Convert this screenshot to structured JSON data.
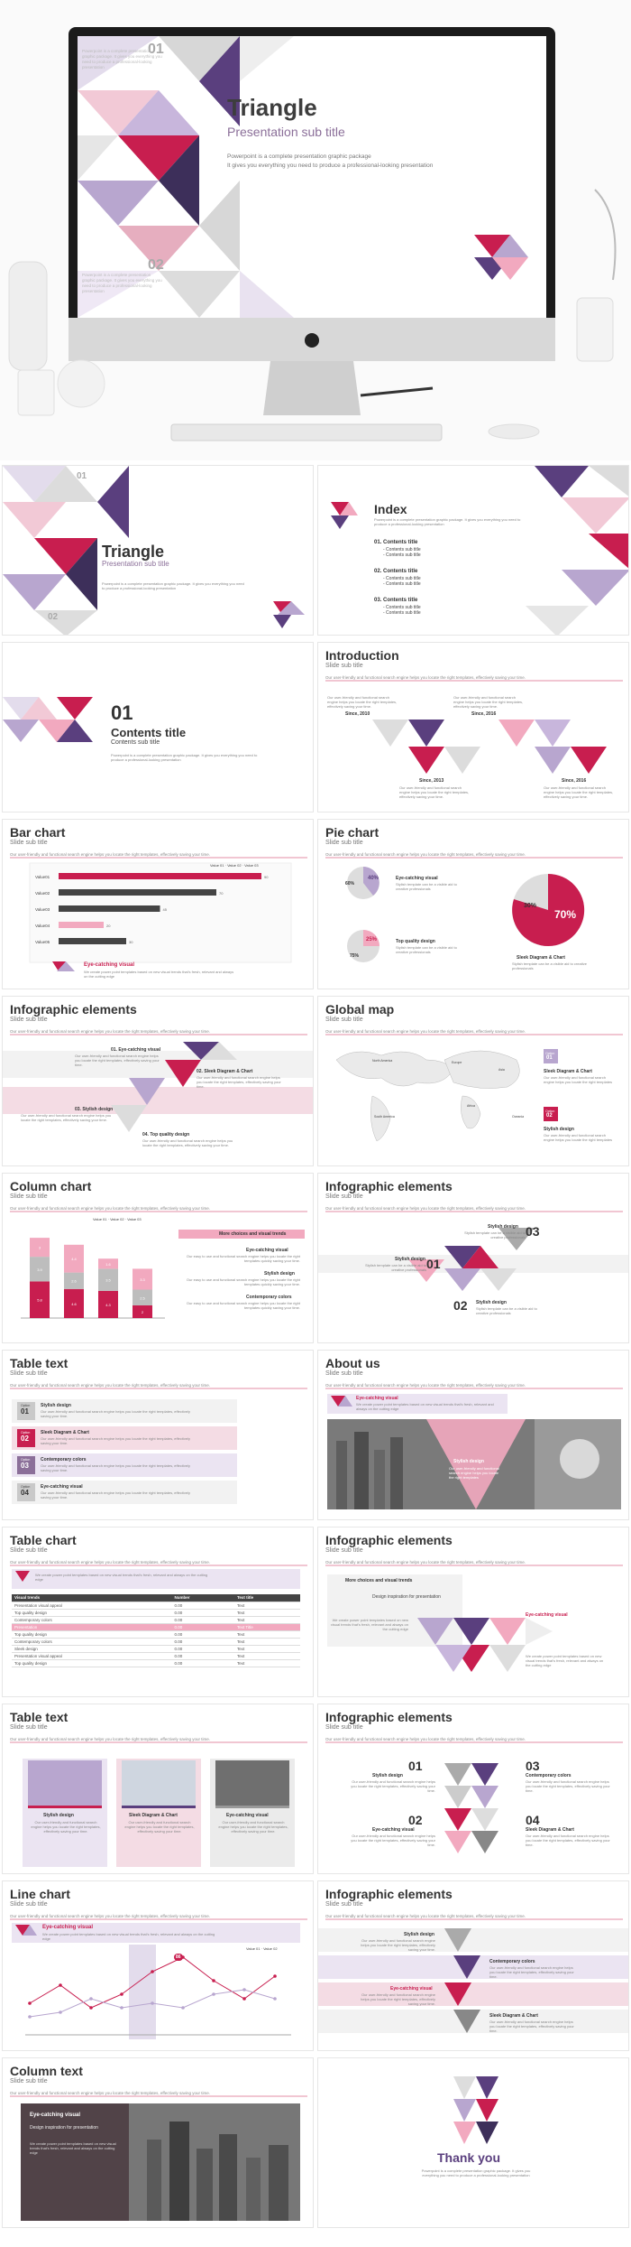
{
  "hero": {
    "title": "Triangle",
    "subtitle": "Presentation sub title",
    "desc1": "Powerpoint is a complete presentation graphic package",
    "desc2": "It gives you everything you need to produce a professional-looking presentation",
    "n1": "01",
    "n2": "02",
    "mini1": "Powerpoint is a complete presentation graphic package. It gives you everything you need to produce a professional-looking presentation",
    "mini2": "Powerpoint is a complete presentation graphic package. It gives you everything you need to produce a professional-looking presentation"
  },
  "slides": {
    "s1": {
      "title": "Triangle",
      "sub": "Presentation sub title",
      "n1": "01",
      "n2": "02",
      "desc": "Powerpoint is a complete presentation graphic package. It gives you everything you need to produce a professional-looking presentation"
    },
    "s2": {
      "title": "Index",
      "desc": "Powerpoint is a complete presentation graphic package. It gives you everything you need to produce a professional-looking presentation",
      "items": [
        {
          "h": "01. Contents title",
          "a": "- Contents sub title",
          "b": "- Contents sub title"
        },
        {
          "h": "02. Contents title",
          "a": "- Contents sub title",
          "b": "- Contents sub title"
        },
        {
          "h": "03. Contents title",
          "a": "- Contents sub title",
          "b": "- Contents sub title"
        }
      ]
    },
    "s3": {
      "num": "01",
      "title": "Contents title",
      "sub": "Contents sub title",
      "desc": "Powerpoint is a complete presentation graphic package. It gives you everything you need to produce a professional-looking presentation"
    },
    "s4": {
      "title": "Introduction",
      "sub": "Slide sub title",
      "desc": "Our user-friendly and functional search engine helps you locate the right templates, effectively saving your time.",
      "y1": "Since, 2010",
      "y2": "Since, 2016",
      "y3": "Since, 2013",
      "y4": "Since, 2016",
      "t": "Our user-friendly and functional search engine helps you locate the right templates, effectively saving your time."
    },
    "s5": {
      "title": "Bar chart",
      "sub": "Slide sub title",
      "desc": "Our user-friendly and functional search engine helps you locate the right templates, effectively saving your time.",
      "legend": [
        "Value 01",
        "Value 02",
        "Value 03"
      ],
      "callout": "Eye-catching visual",
      "calloutDesc": "We create power point templates based on new visual trends that's fresh, relevant and always on the cutting edge"
    },
    "s6": {
      "title": "Pie chart",
      "sub": "Slide sub title",
      "desc": "Our user-friendly and functional search engine helps you locate the right templates, effectively saving your time.",
      "p1": "60%",
      "p2": "40%",
      "p3": "75%",
      "p4": "25%",
      "p5": "30%",
      "p6": "70%",
      "h1": "Eye-catching visual",
      "d1": "Stylish template can be a visible aid to creative professionals",
      "h2": "Top quality design",
      "d2": "Stylish template can be a visible aid to creative professionals",
      "h3": "Sleek Diagram & Chart",
      "d3": "Stylish template can be a visible aid to creative professionals",
      "legend": [
        "Value 01",
        "Value 02"
      ]
    },
    "s7": {
      "title": "Infographic elements",
      "sub": "Slide sub title",
      "desc": "Our user-friendly and functional search engine helps you locate the right templates, effectively saving your time.",
      "i1": "01. Eye-catching visual",
      "i2": "02. Sleek Diagram & Chart",
      "i3": "03. Stylish design",
      "i4": "04. Top quality design",
      "t": "Our user-friendly and functional search engine helps you locate the right templates, effectively saving your time."
    },
    "s8": {
      "title": "Global map",
      "sub": "Slide sub title",
      "desc": "Our user-friendly and functional search engine helps you locate the right templates, effectively saving your time.",
      "o1": "Option",
      "n1": "01",
      "o2": "Option",
      "n2": "02",
      "h1": "Sleek Diagram & Chart",
      "h2": "Stylish design",
      "d1": "Our user-friendly and functional search engine helps you locate the right templates",
      "d2": "Our user-friendly and functional search engine helps you locate the right templates",
      "r1": "Europe",
      "r2": "North America",
      "r3": "Africa",
      "r4": "South America",
      "r5": "Oceania",
      "r6": "Asia"
    },
    "s9": {
      "title": "Column chart",
      "sub": "Slide sub title",
      "desc": "Our user-friendly and functional search engine helps you locate the right templates, effectively saving your time.",
      "banner": "More choices and visual trends",
      "h1": "Eye-catching visual",
      "h2": "Stylish design",
      "h3": "Contemporary colors",
      "d": "Our easy to use and functional search engine helps you locate the right templates quickly saving your time.",
      "legend": [
        "Value 01",
        "Value 02",
        "Value 03"
      ]
    },
    "s10": {
      "title": "Infographic elements",
      "sub": "Slide sub title",
      "desc": "Our user-friendly and functional search engine helps you locate the right templates, effectively saving your time.",
      "n1": "01",
      "n2": "02",
      "n3": "03",
      "h1": "Stylish design",
      "h2": "Stylish design",
      "h3": "Stylish design",
      "d": "Stylish template can be a visible aid to creative professionals"
    },
    "s11": {
      "title": "Table text",
      "sub": "Slide sub title",
      "desc": "Our user-friendly and functional search engine helps you locate the right templates, effectively saving your time.",
      "rows": [
        {
          "o": "Option",
          "n": "01",
          "h": "Stylish design"
        },
        {
          "o": "Option",
          "n": "02",
          "h": "Sleek Diagram & Chart"
        },
        {
          "o": "Option",
          "n": "03",
          "h": "Contemporary colors"
        },
        {
          "o": "Option",
          "n": "04",
          "h": "Eye-catching visual"
        }
      ],
      "d": "Our user-friendly and functional search engine helps you locate the right templates, effectively saving your time."
    },
    "s12": {
      "title": "About us",
      "sub": "Slide sub title",
      "desc": "Our user-friendly and functional search engine helps you locate the right templates, effectively saving your time.",
      "h1": "Eye-catching visual",
      "d1": "We create power point templates based on new visual trends that's fresh, relevant and always on the cutting edge",
      "h2": "Stylish design",
      "d2": "Our user-friendly and functional search engine helps you locate the right templates"
    },
    "s13": {
      "title": "Table chart",
      "sub": "Slide sub title",
      "desc": "Our user-friendly and functional search engine helps you locate the right templates, effectively saving your time.",
      "callout": "We create power point templates based on new visual trends that's fresh, relevant and always on the cutting edge",
      "head": [
        "Visual trends",
        "Number",
        "Text title"
      ],
      "rows": [
        [
          "Presentation visual appeal",
          "0.00",
          "Text"
        ],
        [
          "Top quality design",
          "0.00",
          "Text"
        ],
        [
          "Contemporary colors",
          "0.00",
          "Text"
        ],
        [
          "Presentation",
          "0.00",
          "Text Title"
        ],
        [
          "Top quality design",
          "0.00",
          "Text"
        ],
        [
          "Contemporary colors",
          "0.00",
          "Text"
        ],
        [
          "Sleek design",
          "0.00",
          "Text"
        ],
        [
          "Presentation visual appeal",
          "0.00",
          "Text"
        ],
        [
          "Top quality design",
          "0.00",
          "Text"
        ]
      ]
    },
    "s14": {
      "title": "Infographic elements",
      "sub": "Slide sub title",
      "desc": "Our user-friendly and functional search engine helps you locate the right templates, effectively saving your time.",
      "h1": "More choices and visual trends",
      "h2": "Design inspiration for presentation",
      "h3": "Eye-catching visual",
      "d": "We create power point templates based on new visual trends that's fresh, relevant and always on the cutting edge"
    },
    "s15": {
      "title": "Table text",
      "sub": "Slide sub title",
      "desc": "Our user-friendly and functional search engine helps you locate the right templates, effectively saving your time.",
      "c1": "Stylish design",
      "c2": "Sleek Diagram & Chart",
      "c3": "Eye-catching visual",
      "d": "Our user-friendly and functional search engine helps you locate the right templates, effectively saving your time."
    },
    "s16": {
      "title": "Infographic elements",
      "sub": "Slide sub title",
      "desc": "Our user-friendly and functional search engine helps you locate the right templates, effectively saving your time.",
      "n1": "01",
      "n2": "02",
      "n3": "03",
      "n4": "04",
      "h1": "Stylish design",
      "h2": "Eye-catching visual",
      "h3": "Contemporary colors",
      "h4": "Sleek Diagram & Chart",
      "d": "Our user-friendly and functional search engine helps you locate the right templates, effectively saving your time."
    },
    "s17": {
      "title": "Line chart",
      "sub": "Slide sub title",
      "desc": "Our user-friendly and functional search engine helps you locate the right templates, effectively saving your time.",
      "callout": "Eye-catching visual",
      "calloutDesc": "We create power point templates based on new visual trends that's fresh, relevant and always on the cutting edge",
      "legend": [
        "Value 01",
        "Value 02"
      ],
      "mark": "86"
    },
    "s18": {
      "title": "Infographic elements",
      "sub": "Slide sub title",
      "desc": "Our user-friendly and functional search engine helps you locate the right templates, effectively saving your time.",
      "h1": "Stylish design",
      "h2": "Contemporary colors",
      "h3": "Eye-catching visual",
      "h4": "Sleek Diagram & Chart",
      "d": "Our user-friendly and functional search engine helps you locate the right templates, effectively saving your time."
    },
    "s19": {
      "title": "Column text",
      "sub": "Slide sub title",
      "desc": "Our user-friendly and functional search engine helps you locate the right templates, effectively saving your time.",
      "h": "Eye-catching visual",
      "h2": "Design inspiration for presentation",
      "d": "We create power point templates based on new visual trends that's fresh, relevant and always on the cutting edge"
    },
    "s20": {
      "title": "Thank you",
      "desc": "Powerpoint is a complete presentation graphic package. It gives you everything you need to produce a professional-looking presentation"
    }
  },
  "colors": {
    "pink": "#c81e4f",
    "lightpink": "#f2a9bf",
    "purple": "#5a3f7e",
    "lavender": "#b8a6cf",
    "gray": "#cfcfcf"
  },
  "chart_data": [
    {
      "type": "bar",
      "categories": [
        "Value01",
        "Value02",
        "Value03",
        "Value04",
        "Value05"
      ],
      "series": [
        {
          "name": "Value 01",
          "values": [
            90,
            70,
            45,
            20,
            30
          ]
        }
      ]
    },
    {
      "type": "pie",
      "values": [
        30,
        70
      ]
    },
    {
      "type": "bar",
      "series": [
        {
          "name": "Value 01",
          "values": [
            5.8,
            4.6,
            4.3,
            2.0
          ]
        },
        {
          "name": "Value 02",
          "values": [
            3.9,
            2.6,
            3.5,
            2.5
          ]
        },
        {
          "name": "Value 03",
          "values": [
            3.0,
            4.4,
            1.6,
            3.3
          ]
        }
      ]
    },
    {
      "type": "line",
      "series": [
        {
          "name": "Value 01",
          "values": [
            35,
            55,
            30,
            45,
            70,
            86,
            60,
            40,
            65
          ]
        },
        {
          "name": "Value 02",
          "values": [
            20,
            25,
            40,
            30,
            35,
            30,
            45,
            50,
            40
          ]
        }
      ]
    }
  ]
}
